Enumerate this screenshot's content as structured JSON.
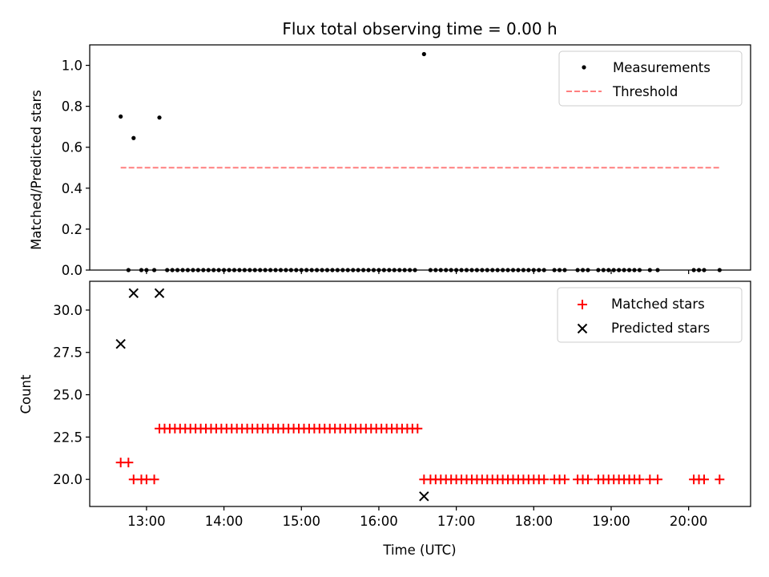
{
  "chart_data": [
    {
      "type": "scatter",
      "title": "Flux total observing time = 0.00 h",
      "xlabel": "",
      "ylabel": "Matched/Predicted stars",
      "xlim": [
        "12:16",
        "20:48"
      ],
      "ylim": [
        0,
        1.1
      ],
      "yticks": [
        0.0,
        0.2,
        0.4,
        0.6,
        0.8,
        1.0
      ],
      "ytick_labels": [
        "0.0",
        "0.2",
        "0.4",
        "0.6",
        "0.8",
        "1.0"
      ],
      "legend": "top-right",
      "series": [
        {
          "name": "Measurements",
          "kind": "scatter",
          "marker": "dot",
          "color": "#000000",
          "points": [
            [
              "12:40",
              0.75
            ],
            [
              "12:46",
              0.0
            ],
            [
              "12:50",
              0.645
            ],
            [
              "12:56",
              0.0
            ],
            [
              "13:00",
              0.0
            ],
            [
              "13:06",
              0.0
            ],
            [
              "13:10",
              0.745
            ],
            [
              "13:16",
              0.0
            ],
            [
              "13:20",
              0.0
            ],
            [
              "13:24",
              0.0
            ],
            [
              "13:28",
              0.0
            ],
            [
              "13:32",
              0.0
            ],
            [
              "13:36",
              0.0
            ],
            [
              "13:40",
              0.0
            ],
            [
              "13:44",
              0.0
            ],
            [
              "13:48",
              0.0
            ],
            [
              "13:52",
              0.0
            ],
            [
              "13:56",
              0.0
            ],
            [
              "14:00",
              0.0
            ],
            [
              "14:04",
              0.0
            ],
            [
              "14:08",
              0.0
            ],
            [
              "14:12",
              0.0
            ],
            [
              "14:16",
              0.0
            ],
            [
              "14:20",
              0.0
            ],
            [
              "14:24",
              0.0
            ],
            [
              "14:28",
              0.0
            ],
            [
              "14:32",
              0.0
            ],
            [
              "14:36",
              0.0
            ],
            [
              "14:40",
              0.0
            ],
            [
              "14:44",
              0.0
            ],
            [
              "14:48",
              0.0
            ],
            [
              "14:52",
              0.0
            ],
            [
              "14:56",
              0.0
            ],
            [
              "15:00",
              0.0
            ],
            [
              "15:04",
              0.0
            ],
            [
              "15:08",
              0.0
            ],
            [
              "15:12",
              0.0
            ],
            [
              "15:16",
              0.0
            ],
            [
              "15:20",
              0.0
            ],
            [
              "15:24",
              0.0
            ],
            [
              "15:28",
              0.0
            ],
            [
              "15:32",
              0.0
            ],
            [
              "15:36",
              0.0
            ],
            [
              "15:40",
              0.0
            ],
            [
              "15:44",
              0.0
            ],
            [
              "15:48",
              0.0
            ],
            [
              "15:52",
              0.0
            ],
            [
              "15:56",
              0.0
            ],
            [
              "16:00",
              0.0
            ],
            [
              "16:04",
              0.0
            ],
            [
              "16:08",
              0.0
            ],
            [
              "16:12",
              0.0
            ],
            [
              "16:16",
              0.0
            ],
            [
              "16:20",
              0.0
            ],
            [
              "16:24",
              0.0
            ],
            [
              "16:28",
              0.0
            ],
            [
              "16:35",
              1.055
            ],
            [
              "16:40",
              0.0
            ],
            [
              "16:44",
              0.0
            ],
            [
              "16:48",
              0.0
            ],
            [
              "16:52",
              0.0
            ],
            [
              "16:56",
              0.0
            ],
            [
              "17:00",
              0.0
            ],
            [
              "17:04",
              0.0
            ],
            [
              "17:08",
              0.0
            ],
            [
              "17:12",
              0.0
            ],
            [
              "17:16",
              0.0
            ],
            [
              "17:20",
              0.0
            ],
            [
              "17:24",
              0.0
            ],
            [
              "17:28",
              0.0
            ],
            [
              "17:32",
              0.0
            ],
            [
              "17:36",
              0.0
            ],
            [
              "17:40",
              0.0
            ],
            [
              "17:44",
              0.0
            ],
            [
              "17:48",
              0.0
            ],
            [
              "17:52",
              0.0
            ],
            [
              "17:56",
              0.0
            ],
            [
              "18:00",
              0.0
            ],
            [
              "18:04",
              0.0
            ],
            [
              "18:08",
              0.0
            ],
            [
              "18:16",
              0.0
            ],
            [
              "18:20",
              0.0
            ],
            [
              "18:24",
              0.0
            ],
            [
              "18:34",
              0.0
            ],
            [
              "18:38",
              0.0
            ],
            [
              "18:42",
              0.0
            ],
            [
              "18:50",
              0.0
            ],
            [
              "18:54",
              0.0
            ],
            [
              "18:58",
              0.0
            ],
            [
              "19:02",
              0.0
            ],
            [
              "19:06",
              0.0
            ],
            [
              "19:10",
              0.0
            ],
            [
              "19:14",
              0.0
            ],
            [
              "19:18",
              0.0
            ],
            [
              "19:22",
              0.0
            ],
            [
              "19:30",
              0.0
            ],
            [
              "19:36",
              0.0
            ],
            [
              "20:04",
              0.0
            ],
            [
              "20:08",
              0.0
            ],
            [
              "20:12",
              0.0
            ],
            [
              "20:24",
              0.0
            ]
          ]
        },
        {
          "name": "Threshold",
          "kind": "line",
          "style": "dashed",
          "color": "#ff7f7f",
          "points": [
            [
              "12:40",
              0.5
            ],
            [
              "20:24",
              0.5
            ]
          ]
        }
      ]
    },
    {
      "type": "scatter",
      "title": "",
      "xlabel": "Time (UTC)",
      "ylabel": "Count",
      "xlim": [
        "12:16",
        "20:48"
      ],
      "ylim": [
        18.4,
        31.7
      ],
      "yticks": [
        20.0,
        22.5,
        25.0,
        27.5,
        30.0
      ],
      "ytick_labels": [
        "20.0",
        "22.5",
        "25.0",
        "27.5",
        "30.0"
      ],
      "xticks": [
        "13:00",
        "14:00",
        "15:00",
        "16:00",
        "17:00",
        "18:00",
        "19:00",
        "20:00"
      ],
      "xtick_labels": [
        "13:00",
        "14:00",
        "15:00",
        "16:00",
        "17:00",
        "18:00",
        "19:00",
        "20:00"
      ],
      "legend": "top-right",
      "series": [
        {
          "name": "Matched stars",
          "kind": "scatter",
          "marker": "plus",
          "color": "#ff0000",
          "points": [
            [
              "12:40",
              21
            ],
            [
              "12:46",
              21
            ],
            [
              "12:50",
              20
            ],
            [
              "12:56",
              20
            ],
            [
              "13:00",
              20
            ],
            [
              "13:06",
              20
            ],
            [
              "13:10",
              23
            ],
            [
              "13:14",
              23
            ],
            [
              "13:18",
              23
            ],
            [
              "13:22",
              23
            ],
            [
              "13:26",
              23
            ],
            [
              "13:30",
              23
            ],
            [
              "13:34",
              23
            ],
            [
              "13:38",
              23
            ],
            [
              "13:42",
              23
            ],
            [
              "13:46",
              23
            ],
            [
              "13:50",
              23
            ],
            [
              "13:54",
              23
            ],
            [
              "13:58",
              23
            ],
            [
              "14:02",
              23
            ],
            [
              "14:06",
              23
            ],
            [
              "14:10",
              23
            ],
            [
              "14:14",
              23
            ],
            [
              "14:18",
              23
            ],
            [
              "14:22",
              23
            ],
            [
              "14:26",
              23
            ],
            [
              "14:30",
              23
            ],
            [
              "14:34",
              23
            ],
            [
              "14:38",
              23
            ],
            [
              "14:42",
              23
            ],
            [
              "14:46",
              23
            ],
            [
              "14:50",
              23
            ],
            [
              "14:54",
              23
            ],
            [
              "14:58",
              23
            ],
            [
              "15:02",
              23
            ],
            [
              "15:06",
              23
            ],
            [
              "15:10",
              23
            ],
            [
              "15:14",
              23
            ],
            [
              "15:18",
              23
            ],
            [
              "15:22",
              23
            ],
            [
              "15:26",
              23
            ],
            [
              "15:30",
              23
            ],
            [
              "15:34",
              23
            ],
            [
              "15:38",
              23
            ],
            [
              "15:42",
              23
            ],
            [
              "15:46",
              23
            ],
            [
              "15:50",
              23
            ],
            [
              "15:54",
              23
            ],
            [
              "15:58",
              23
            ],
            [
              "16:02",
              23
            ],
            [
              "16:06",
              23
            ],
            [
              "16:10",
              23
            ],
            [
              "16:14",
              23
            ],
            [
              "16:18",
              23
            ],
            [
              "16:22",
              23
            ],
            [
              "16:26",
              23
            ],
            [
              "16:30",
              23
            ],
            [
              "16:35",
              20
            ],
            [
              "16:40",
              20
            ],
            [
              "16:44",
              20
            ],
            [
              "16:48",
              20
            ],
            [
              "16:52",
              20
            ],
            [
              "16:56",
              20
            ],
            [
              "17:00",
              20
            ],
            [
              "17:04",
              20
            ],
            [
              "17:08",
              20
            ],
            [
              "17:12",
              20
            ],
            [
              "17:16",
              20
            ],
            [
              "17:20",
              20
            ],
            [
              "17:24",
              20
            ],
            [
              "17:28",
              20
            ],
            [
              "17:32",
              20
            ],
            [
              "17:36",
              20
            ],
            [
              "17:40",
              20
            ],
            [
              "17:44",
              20
            ],
            [
              "17:48",
              20
            ],
            [
              "17:52",
              20
            ],
            [
              "17:56",
              20
            ],
            [
              "18:00",
              20
            ],
            [
              "18:04",
              20
            ],
            [
              "18:08",
              20
            ],
            [
              "18:16",
              20
            ],
            [
              "18:20",
              20
            ],
            [
              "18:24",
              20
            ],
            [
              "18:34",
              20
            ],
            [
              "18:38",
              20
            ],
            [
              "18:42",
              20
            ],
            [
              "18:50",
              20
            ],
            [
              "18:54",
              20
            ],
            [
              "18:58",
              20
            ],
            [
              "19:02",
              20
            ],
            [
              "19:06",
              20
            ],
            [
              "19:10",
              20
            ],
            [
              "19:14",
              20
            ],
            [
              "19:18",
              20
            ],
            [
              "19:22",
              20
            ],
            [
              "19:30",
              20
            ],
            [
              "19:36",
              20
            ],
            [
              "20:04",
              20
            ],
            [
              "20:08",
              20
            ],
            [
              "20:12",
              20
            ],
            [
              "20:24",
              20
            ]
          ]
        },
        {
          "name": "Predicted stars",
          "kind": "scatter",
          "marker": "x",
          "color": "#000000",
          "points": [
            [
              "12:40",
              28
            ],
            [
              "12:50",
              31
            ],
            [
              "13:10",
              31
            ],
            [
              "16:35",
              19
            ]
          ]
        }
      ]
    }
  ]
}
